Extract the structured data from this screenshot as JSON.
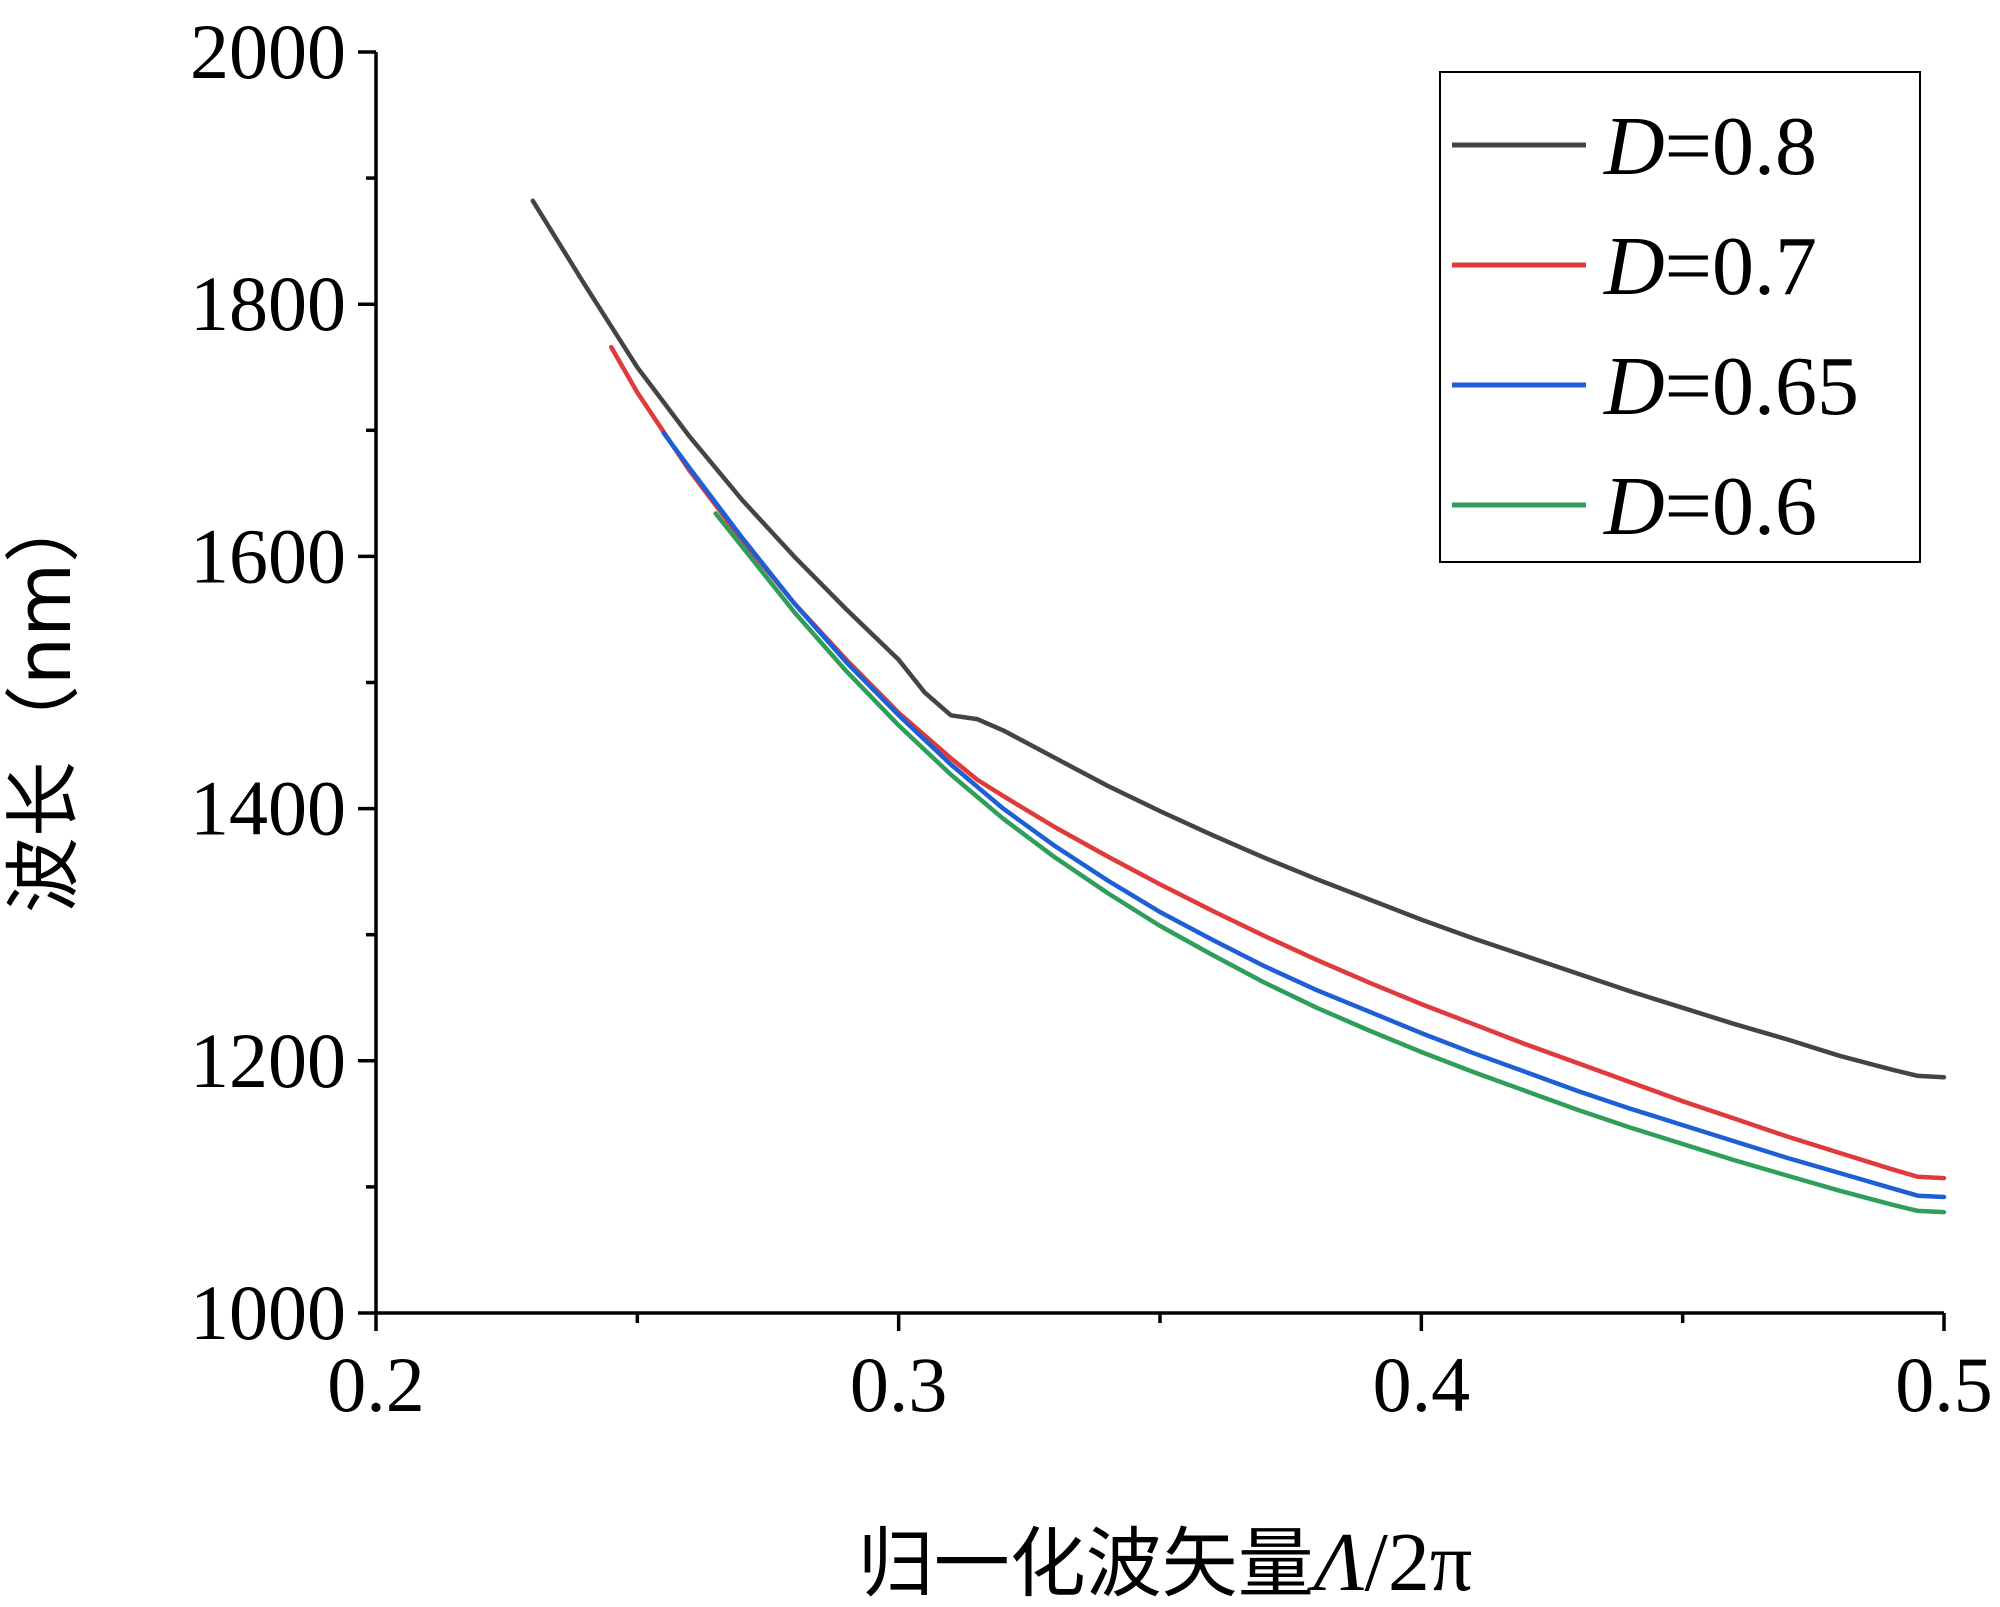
{
  "chart_data": {
    "type": "line",
    "xlabel_cn": "归一化波矢量",
    "xlabel_var": "Λ",
    "xlabel_suffix": "/2π",
    "ylabel": "波长（nm）",
    "xlim": [
      0.2,
      0.5
    ],
    "ylim": [
      1000,
      2000
    ],
    "xticks": [
      0.2,
      0.3,
      0.4,
      0.5
    ],
    "xtick_labels": [
      "0.2",
      "0.3",
      "0.4",
      "0.5"
    ],
    "xminor": [
      0.25,
      0.35,
      0.45
    ],
    "yticks": [
      1000,
      1200,
      1400,
      1600,
      1800,
      2000
    ],
    "ytick_labels": [
      "1000",
      "1200",
      "1400",
      "1600",
      "1800",
      "2000"
    ],
    "yminor": [
      1100,
      1300,
      1500,
      1700,
      1900
    ],
    "grid": false,
    "legend_position": "top-right",
    "series": [
      {
        "name_var": "D",
        "name_value": "=0.8",
        "color": "#444444",
        "points": [
          [
            0.23,
            1882
          ],
          [
            0.24,
            1815
          ],
          [
            0.25,
            1750
          ],
          [
            0.26,
            1695
          ],
          [
            0.27,
            1645
          ],
          [
            0.28,
            1600
          ],
          [
            0.29,
            1558
          ],
          [
            0.3,
            1518
          ],
          [
            0.305,
            1492
          ],
          [
            0.31,
            1474
          ],
          [
            0.315,
            1471
          ],
          [
            0.32,
            1462
          ],
          [
            0.33,
            1440
          ],
          [
            0.34,
            1418
          ],
          [
            0.35,
            1398
          ],
          [
            0.36,
            1379
          ],
          [
            0.37,
            1361
          ],
          [
            0.38,
            1344
          ],
          [
            0.39,
            1328
          ],
          [
            0.4,
            1312
          ],
          [
            0.41,
            1297
          ],
          [
            0.42,
            1283
          ],
          [
            0.43,
            1269
          ],
          [
            0.44,
            1255
          ],
          [
            0.45,
            1242
          ],
          [
            0.46,
            1229
          ],
          [
            0.47,
            1217
          ],
          [
            0.48,
            1204
          ],
          [
            0.49,
            1193
          ],
          [
            0.495,
            1188
          ],
          [
            0.5,
            1187
          ]
        ]
      },
      {
        "name_var": "D",
        "name_value": "=0.7",
        "color": "#e03a3a",
        "points": [
          [
            0.245,
            1766
          ],
          [
            0.25,
            1730
          ],
          [
            0.26,
            1668
          ],
          [
            0.27,
            1613
          ],
          [
            0.28,
            1563
          ],
          [
            0.29,
            1518
          ],
          [
            0.3,
            1476
          ],
          [
            0.31,
            1440
          ],
          [
            0.315,
            1423
          ],
          [
            0.32,
            1410
          ],
          [
            0.33,
            1385
          ],
          [
            0.34,
            1362
          ],
          [
            0.35,
            1340
          ],
          [
            0.36,
            1319
          ],
          [
            0.37,
            1299
          ],
          [
            0.38,
            1280
          ],
          [
            0.39,
            1262
          ],
          [
            0.4,
            1245
          ],
          [
            0.41,
            1229
          ],
          [
            0.42,
            1213
          ],
          [
            0.43,
            1198
          ],
          [
            0.44,
            1183
          ],
          [
            0.45,
            1168
          ],
          [
            0.46,
            1154
          ],
          [
            0.47,
            1140
          ],
          [
            0.48,
            1127
          ],
          [
            0.49,
            1114
          ],
          [
            0.495,
            1108
          ],
          [
            0.5,
            1107
          ]
        ]
      },
      {
        "name_var": "D",
        "name_value": "=0.65",
        "color": "#1f5fd6",
        "points": [
          [
            0.255,
            1698
          ],
          [
            0.26,
            1670
          ],
          [
            0.27,
            1615
          ],
          [
            0.28,
            1563
          ],
          [
            0.29,
            1516
          ],
          [
            0.3,
            1474
          ],
          [
            0.31,
            1435
          ],
          [
            0.32,
            1400
          ],
          [
            0.33,
            1370
          ],
          [
            0.34,
            1343
          ],
          [
            0.35,
            1318
          ],
          [
            0.36,
            1296
          ],
          [
            0.37,
            1275
          ],
          [
            0.38,
            1256
          ],
          [
            0.39,
            1239
          ],
          [
            0.4,
            1222
          ],
          [
            0.41,
            1206
          ],
          [
            0.42,
            1191
          ],
          [
            0.43,
            1176
          ],
          [
            0.44,
            1162
          ],
          [
            0.45,
            1149
          ],
          [
            0.46,
            1136
          ],
          [
            0.47,
            1123
          ],
          [
            0.48,
            1111
          ],
          [
            0.49,
            1099
          ],
          [
            0.495,
            1093
          ],
          [
            0.5,
            1092
          ]
        ]
      },
      {
        "name_var": "D",
        "name_value": "=0.6",
        "color": "#2e9e5a",
        "points": [
          [
            0.265,
            1634
          ],
          [
            0.27,
            1608
          ],
          [
            0.28,
            1556
          ],
          [
            0.29,
            1509
          ],
          [
            0.3,
            1466
          ],
          [
            0.31,
            1427
          ],
          [
            0.32,
            1392
          ],
          [
            0.33,
            1361
          ],
          [
            0.34,
            1333
          ],
          [
            0.35,
            1307
          ],
          [
            0.36,
            1284
          ],
          [
            0.37,
            1262
          ],
          [
            0.38,
            1242
          ],
          [
            0.39,
            1224
          ],
          [
            0.4,
            1207
          ],
          [
            0.41,
            1191
          ],
          [
            0.42,
            1176
          ],
          [
            0.43,
            1161
          ],
          [
            0.44,
            1147
          ],
          [
            0.45,
            1134
          ],
          [
            0.46,
            1121
          ],
          [
            0.47,
            1109
          ],
          [
            0.48,
            1097
          ],
          [
            0.49,
            1086
          ],
          [
            0.495,
            1081
          ],
          [
            0.5,
            1080
          ]
        ]
      }
    ]
  }
}
